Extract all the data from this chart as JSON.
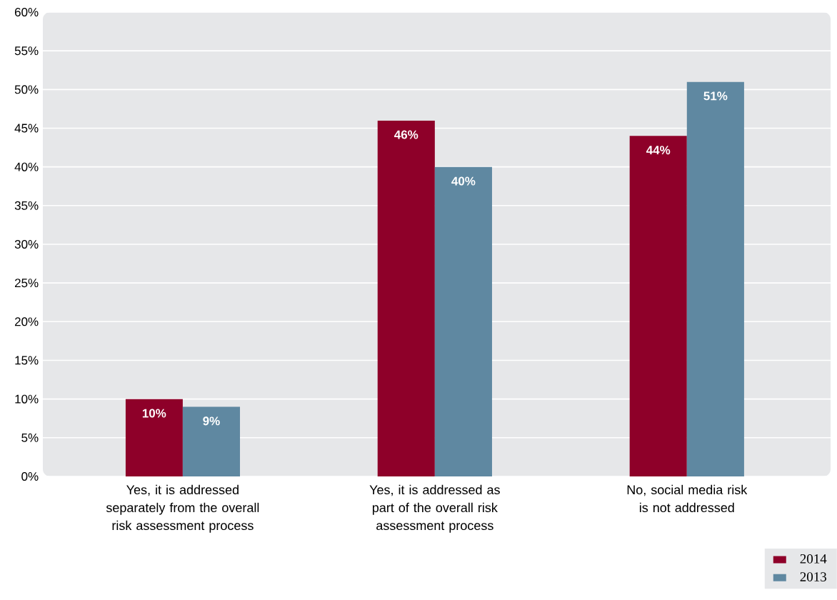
{
  "chart_data": {
    "type": "bar",
    "categories": [
      "Yes, it is addressed separately from the overall risk assessment process",
      "Yes, it is addressed as part of the overall risk assessment process",
      "No, social media risk is not addressed"
    ],
    "series": [
      {
        "name": "2014",
        "color": "#8e0029",
        "values": [
          10,
          46,
          44
        ],
        "value_labels": [
          "10%",
          "46%",
          "44%"
        ]
      },
      {
        "name": "2013",
        "color": "#5f88a1",
        "values": [
          9,
          40,
          51
        ],
        "value_labels": [
          "9%",
          "40%",
          "51%"
        ]
      }
    ],
    "ylim": [
      0,
      60
    ],
    "yticks": [
      {
        "value": 0,
        "label": "0%"
      },
      {
        "value": 5,
        "label": "5%"
      },
      {
        "value": 10,
        "label": "10%"
      },
      {
        "value": 15,
        "label": "15%"
      },
      {
        "value": 20,
        "label": "20%"
      },
      {
        "value": 25,
        "label": "25%"
      },
      {
        "value": 30,
        "label": "30%"
      },
      {
        "value": 35,
        "label": "35%"
      },
      {
        "value": 40,
        "label": "40%"
      },
      {
        "value": 45,
        "label": "45%"
      },
      {
        "value": 50,
        "label": "50%"
      },
      {
        "value": 55,
        "label": "55%"
      },
      {
        "value": 60,
        "label": "60%"
      }
    ],
    "grid": "y",
    "legend": "bottom right"
  }
}
